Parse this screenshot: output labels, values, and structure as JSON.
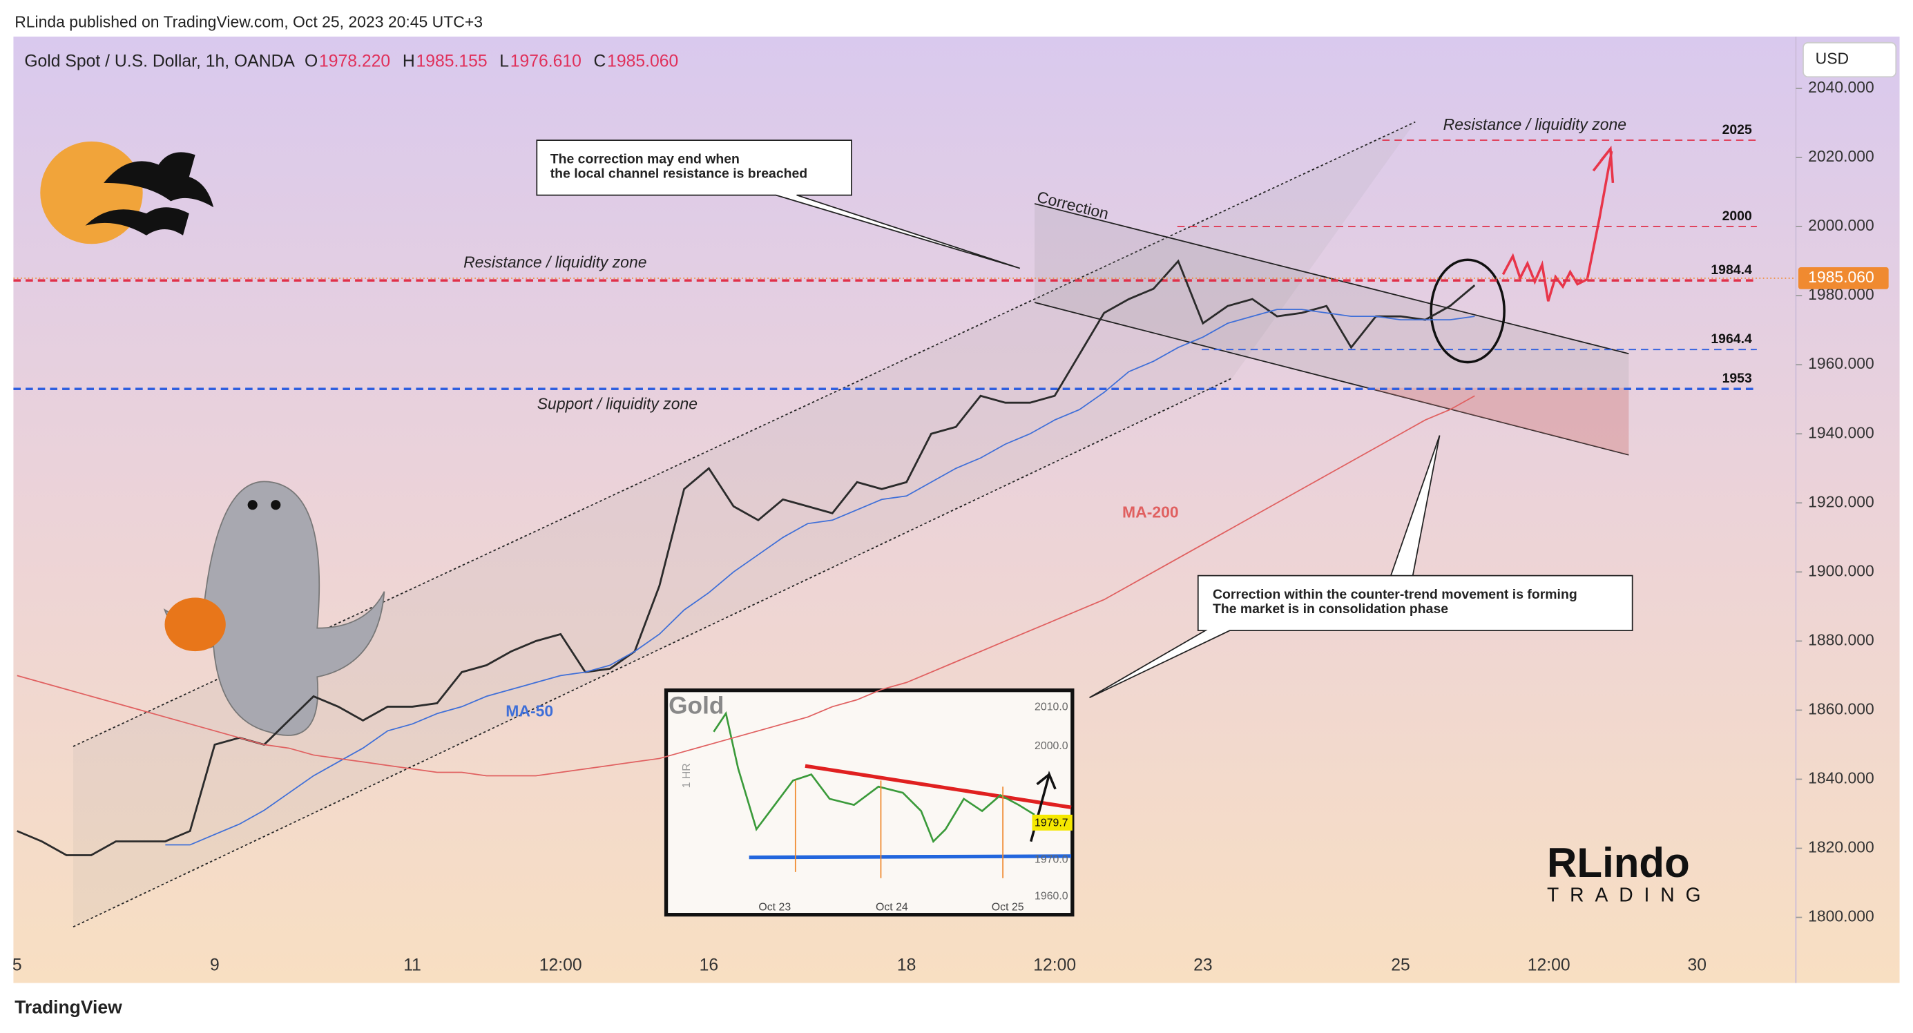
{
  "header": {
    "byline": "RLinda published on TradingView.com, Oct 25, 2023 20:45 UTC+3",
    "currency": "USD"
  },
  "footer": {
    "brand": "TradingView"
  },
  "logo": {
    "top": "RLindo",
    "bottom": "TRADING"
  },
  "inset": {
    "title": "Gold",
    "timeframe": "1 HR",
    "yticks": [
      "2010.0",
      "2000.0",
      "1970.0",
      "1960.0"
    ],
    "last_price": "1979.7",
    "xticks": [
      "Oct 23",
      "Oct 24",
      "Oct 25"
    ]
  },
  "chart_data": {
    "type": "line",
    "title": "Gold Spot / U.S. Dollar, 1h, OANDA",
    "ohlc": [
      {
        "key": "O",
        "value": {
          "value": 1978.22,
          "label": "1978.220"
        }
      },
      {
        "key": "H",
        "value": {
          "value": 1985.155,
          "label": "1985.155"
        }
      },
      {
        "key": "L",
        "value": {
          "value": 1976.61,
          "label": "1976.610"
        }
      },
      {
        "key": "C",
        "value": {
          "value": 1985.06,
          "label": "1985.060"
        }
      }
    ],
    "last_price": {
      "value": 1985.06,
      "label": "1985.060"
    },
    "categories": [
      "5",
      null,
      null,
      null,
      null,
      null,
      null,
      null,
      "9",
      null,
      null,
      null,
      null,
      null,
      null,
      null,
      "11",
      null,
      null,
      null,
      null,
      null,
      "12:00",
      null,
      null,
      null,
      null,
      null,
      "16",
      null,
      null,
      null,
      null,
      null,
      null,
      null,
      "18",
      null,
      null,
      null,
      null,
      null,
      "12:00",
      null,
      null,
      null,
      null,
      null,
      "23",
      null,
      null,
      null,
      null,
      null,
      null,
      null,
      "25",
      null,
      null,
      null,
      null,
      null,
      "12:00",
      null,
      null,
      null,
      null,
      null,
      "30",
      null,
      null,
      null,
      null
    ],
    "series": [
      {
        "color": "#2b2b2b",
        "values": [
          1825,
          1822,
          1818,
          1818,
          1822,
          1822,
          1822,
          1825,
          1850,
          1852,
          1850,
          1857,
          1864,
          1861,
          1857,
          1861,
          1861,
          1862,
          1871,
          1873,
          1877,
          1880,
          1882,
          1871,
          1872,
          1877,
          1896,
          1924,
          1930,
          1919,
          1915,
          1921,
          1919,
          1917,
          1926,
          1924,
          1926,
          1940,
          1942,
          1951,
          1949,
          1949,
          1951,
          1963,
          1975,
          1979,
          1982,
          1990,
          1972,
          1977,
          1979,
          1974,
          1975,
          1977,
          1965,
          1974,
          1974,
          1973,
          1977,
          1983,
          null,
          null,
          null,
          null,
          null,
          null,
          null,
          null,
          null,
          null,
          null,
          null,
          null
        ]
      },
      {
        "name": "MA-50",
        "color": "#3f6fd8",
        "values": [
          null,
          null,
          null,
          null,
          null,
          null,
          1821,
          1821,
          1824,
          1827,
          1831,
          1836,
          1841,
          1845,
          1849,
          1854,
          1856,
          1859,
          1861,
          1864,
          1866,
          1868,
          1870,
          1871,
          1873,
          1877,
          1882,
          1889,
          1894,
          1900,
          1905,
          1910,
          1914,
          1915,
          1918,
          1921,
          1922,
          1926,
          1930,
          1933,
          1937,
          1940,
          1944,
          1947,
          1952,
          1958,
          1961,
          1965,
          1968,
          1972,
          1974,
          1976,
          1976,
          1975,
          1974,
          1974,
          1973,
          1973,
          1973,
          1974,
          null,
          null,
          null,
          null,
          null,
          null,
          null,
          null,
          null,
          null,
          null,
          null,
          null
        ]
      },
      {
        "name": "MA-200",
        "color": "#e06060",
        "values": [
          1870,
          1868,
          1866,
          1864,
          1862,
          1860,
          1858,
          1856,
          1854,
          1852,
          1850,
          1849,
          1847,
          1846,
          1845,
          1844,
          1843,
          1842,
          1842,
          1841,
          1841,
          1841,
          1842,
          1843,
          1844,
          1845,
          1846,
          1848,
          1850,
          1852,
          1854,
          1856,
          1858,
          1861,
          1863,
          1866,
          1868,
          1871,
          1874,
          1877,
          1880,
          1883,
          1886,
          1889,
          1892,
          1896,
          1900,
          1904,
          1908,
          1912,
          1916,
          1920,
          1924,
          1928,
          1932,
          1936,
          1940,
          1944,
          1947,
          1951,
          null,
          null,
          null,
          null,
          null,
          null,
          null,
          null,
          null,
          null,
          null,
          null,
          null
        ]
      }
    ],
    "levels": [
      {
        "value": 2025,
        "color": "#e0304a"
      },
      {
        "value": 2000,
        "color": "#e0304a"
      },
      {
        "value": 1984.4,
        "color": "#e0304a"
      },
      {
        "value": 1964.4,
        "color": "#2f5fe0"
      },
      {
        "value": 1953,
        "color": "#2f5fe0"
      }
    ],
    "annotations": [
      "Resistance / liquidity zone",
      "Support / liquidity zone",
      "Resistance / liquidity zone",
      "Correction"
    ],
    "callouts": [
      [
        "The correction may end when",
        "the local channel resistance is breached"
      ],
      [
        "Correction within the counter-trend movement is forming",
        "The market is in consolidation phase"
      ]
    ],
    "ylim": [
      1781,
      2055
    ],
    "yticks": [
      {
        "value": 1800,
        "label": "1800.000"
      },
      {
        "value": 1820,
        "label": "1820.000"
      },
      {
        "value": 1840,
        "label": "1840.000"
      },
      {
        "value": 1860,
        "label": "1860.000"
      },
      {
        "value": 1880,
        "label": "1880.000"
      },
      {
        "value": 1900,
        "label": "1900.000"
      },
      {
        "value": 1920,
        "label": "1920.000"
      },
      {
        "value": 1940,
        "label": "1940.000"
      },
      {
        "value": 1960,
        "label": "1960.000"
      },
      {
        "value": 1980,
        "label": "1980.000"
      },
      {
        "value": 2000,
        "label": "2000.000"
      },
      {
        "value": 2020,
        "label": "2020.000"
      },
      {
        "value": 2040,
        "label": "2040.000"
      }
    ],
    "grid": false
  }
}
